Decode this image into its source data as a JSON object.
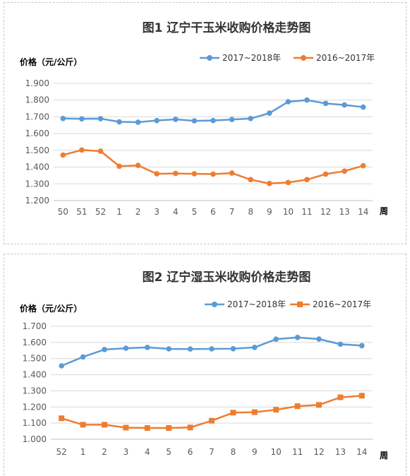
{
  "chart_data": [
    {
      "type": "line",
      "title": "图1 辽宁干玉米收购价格走势图",
      "ylabel": "价格（元/公斤）",
      "xlabel": "周",
      "categories": [
        "50",
        "51",
        "52",
        "1",
        "2",
        "3",
        "4",
        "5",
        "6",
        "7",
        "8",
        "9",
        "10",
        "11",
        "12",
        "13",
        "14"
      ],
      "ylim": [
        1.2,
        1.9
      ],
      "yticks": [
        "1.200",
        "1.300",
        "1.400",
        "1.500",
        "1.600",
        "1.700",
        "1.800",
        "1.900"
      ],
      "grid": true,
      "legend": "top-right",
      "series": [
        {
          "name": "2017~2018年",
          "color": "#5B9BD5",
          "marker": "circle",
          "values": [
            1.69,
            1.688,
            1.689,
            1.67,
            1.668,
            1.678,
            1.685,
            1.676,
            1.678,
            1.684,
            1.69,
            1.722,
            1.79,
            1.8,
            1.78,
            1.771,
            1.758
          ]
        },
        {
          "name": "2016~2017年",
          "color": "#ED7D31",
          "marker": "circle",
          "values": [
            1.472,
            1.502,
            1.495,
            1.405,
            1.41,
            1.36,
            1.362,
            1.36,
            1.358,
            1.364,
            1.325,
            1.302,
            1.308,
            1.325,
            1.358,
            1.376,
            1.408
          ]
        }
      ]
    },
    {
      "type": "line",
      "title": "图2 辽宁湿玉米收购价格走势图",
      "ylabel": "价格（元/公斤）",
      "xlabel": "周",
      "categories": [
        "52",
        "1",
        "2",
        "3",
        "4",
        "5",
        "6",
        "7",
        "8",
        "9",
        "10",
        "11",
        "12",
        "13",
        "14"
      ],
      "ylim": [
        1.0,
        1.7
      ],
      "yticks": [
        "1.000",
        "1.100",
        "1.200",
        "1.300",
        "1.400",
        "1.500",
        "1.600",
        "1.700"
      ],
      "grid": true,
      "legend": "top-right",
      "series": [
        {
          "name": "2017~2018年",
          "color": "#5B9BD5",
          "marker": "circle",
          "values": [
            1.455,
            1.51,
            1.556,
            1.564,
            1.569,
            1.56,
            1.559,
            1.56,
            1.561,
            1.569,
            1.62,
            1.631,
            1.621,
            1.589,
            1.58
          ]
        },
        {
          "name": "2016~2017年",
          "color": "#ED7D31",
          "marker": "square",
          "values": [
            1.13,
            1.09,
            1.09,
            1.072,
            1.07,
            1.07,
            1.073,
            1.115,
            1.165,
            1.168,
            1.183,
            1.205,
            1.213,
            1.26,
            1.27
          ]
        }
      ]
    }
  ]
}
